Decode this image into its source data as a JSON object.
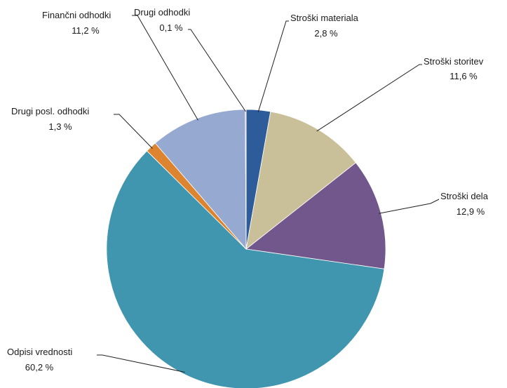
{
  "chart_data": {
    "type": "pie",
    "title": "",
    "start_angle": "12 o'clock, clockwise",
    "slices": [
      {
        "name": "Stroški materiala",
        "value": 2.8,
        "label": "2,8 %",
        "color": "#2E5C9A"
      },
      {
        "name": "Stroški storitev",
        "value": 11.6,
        "label": "11,6 %",
        "color": "#C9C09A"
      },
      {
        "name": "Stroški dela",
        "value": 12.9,
        "label": "12,9 %",
        "color": "#72578C"
      },
      {
        "name": "Odpisi vrednosti",
        "value": 60.2,
        "label": "60,2 %",
        "color": "#4096AE"
      },
      {
        "name": "Drugi posl. odhodki",
        "value": 1.3,
        "label": "1,3 %",
        "color": "#DD8430"
      },
      {
        "name": "Finančni odhodki",
        "value": 11.2,
        "label": "11,2 %",
        "color": "#95A9D1"
      },
      {
        "name": "Drugi odhodki",
        "value": 0.1,
        "label": "0,1 %",
        "color": "#E6A0A0"
      }
    ]
  }
}
